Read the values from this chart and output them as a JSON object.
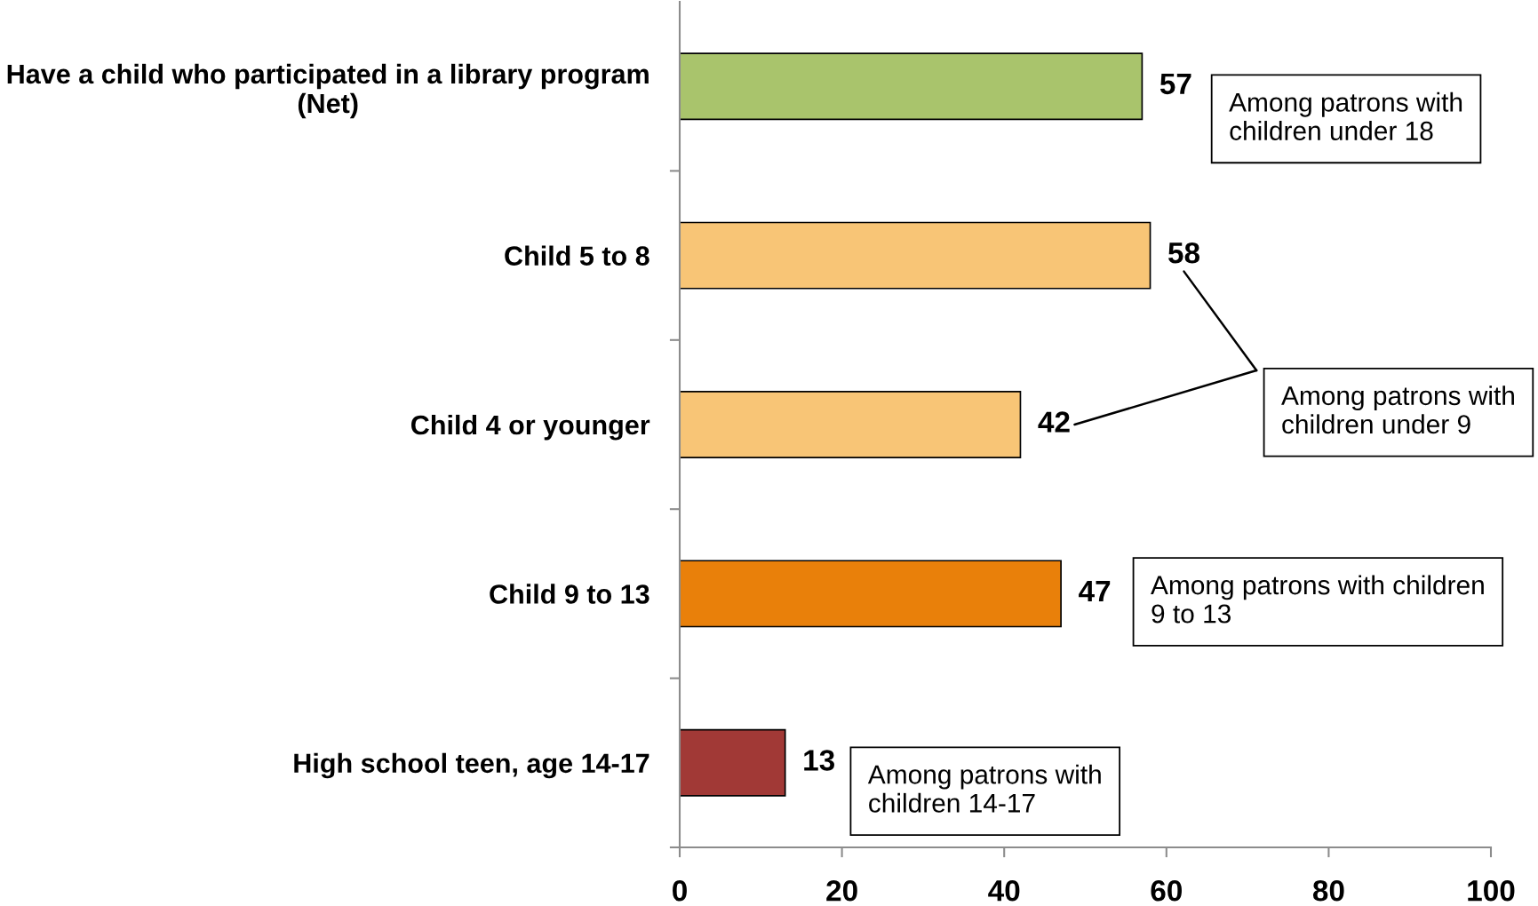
{
  "chart_data": {
    "type": "bar",
    "orientation": "horizontal",
    "categories": [
      "Have a child who participated in a library program\n(Net)",
      "Child 5 to 8",
      "Child 4 or younger",
      "Child 9 to 13",
      "High school teen, age 14-17"
    ],
    "values": [
      57,
      58,
      42,
      47,
      13
    ],
    "colors": [
      "#a9c46c",
      "#f8c576",
      "#f8c576",
      "#e9800a",
      "#a13936"
    ],
    "xlim": [
      0,
      100
    ],
    "xticks": [
      0,
      20,
      40,
      60,
      80,
      100
    ],
    "data_labels": true,
    "annotations": [
      "Among patrons with\nchildren under 18",
      "Among patrons with\nchildren under 9",
      "Among patrons with children\n9 to 13",
      "Among patrons with\nchildren 14-17"
    ]
  }
}
